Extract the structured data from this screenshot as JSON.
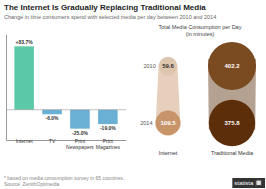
{
  "chart_data": [
    {
      "type": "bar",
      "title": "The Internet Is Gradually Replacing Traditional Media",
      "subtitle": "Change in time consumers spend with selected media per day between 2010 and 2014",
      "categories": [
        "Internet",
        "TV",
        "Print\nNewspapers",
        "Print\nMagazines"
      ],
      "values": [
        83.7,
        -6.0,
        -25.0,
        -19.0
      ],
      "value_labels": [
        "+83.7%",
        "-6.0%",
        "-25.0%",
        "-19.0%"
      ],
      "colors": [
        "#5bc8a8",
        "#6aafd4",
        "#6aafd4",
        "#6aafd4"
      ],
      "ylim": [
        -40,
        100
      ],
      "data_labels": true,
      "tick_labels": "x",
      "annotations": [
        "* based on media consumption survey in 65 countries.\nSource: ZenithOptimedia",
        "statista  🔲"
      ]
    },
    {
      "type": "bubble",
      "title": "Total Media Consumption per Day",
      "subtitle": "(in minutes)",
      "categories": [
        "Internet",
        "Traditional Media"
      ],
      "series": [
        {
          "name": "2010",
          "colors": [
            "#ddc5ae",
            "#7a4a20"
          ],
          "values": [
            59.6,
            402.2
          ]
        },
        {
          "name": "2014",
          "colors": [
            "#c8956a",
            "#5c2e0a"
          ],
          "values": [
            109.5,
            375.8
          ]
        }
      ],
      "data_labels": true
    }
  ]
}
